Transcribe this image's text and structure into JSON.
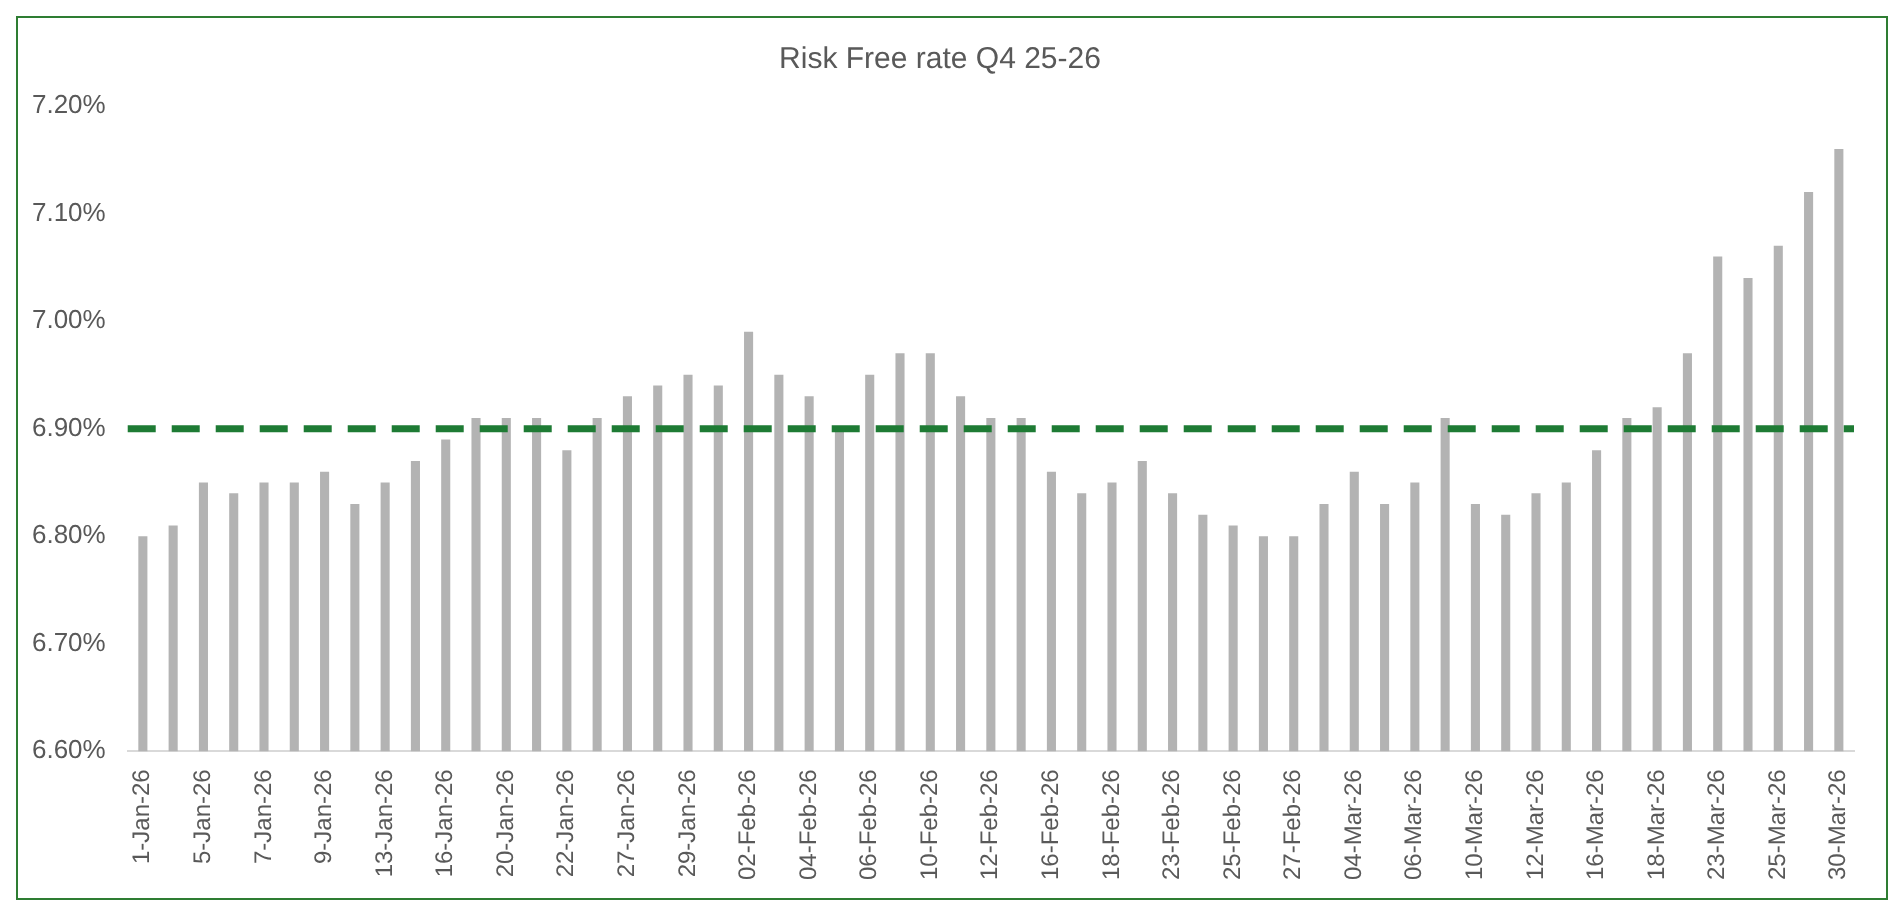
{
  "chart_data": {
    "type": "bar",
    "title": "Risk Free rate Q4 25-26",
    "categories": [
      "1-Jan-26",
      null,
      "5-Jan-26",
      null,
      "7-Jan-26",
      null,
      "9-Jan-26",
      null,
      "13-Jan-26",
      null,
      "16-Jan-26",
      null,
      "20-Jan-26",
      null,
      "22-Jan-26",
      null,
      "27-Jan-26",
      null,
      "29-Jan-26",
      null,
      "02-Feb-26",
      null,
      "04-Feb-26",
      null,
      "06-Feb-26",
      null,
      "10-Feb-26",
      null,
      "12-Feb-26",
      null,
      "16-Feb-26",
      null,
      "18-Feb-26",
      null,
      "23-Feb-26",
      null,
      "25-Feb-26",
      null,
      "27-Feb-26",
      null,
      "04-Mar-26",
      null,
      "06-Mar-26",
      null,
      "10-Mar-26",
      null,
      "12-Mar-26",
      null,
      "16-Mar-26",
      null,
      "18-Mar-26",
      null,
      "23-Mar-26",
      null,
      "25-Mar-26",
      null,
      "30-Mar-26"
    ],
    "series": [
      {
        "color": "#b3b3b3",
        "values": [
          6.8,
          6.81,
          6.85,
          6.84,
          6.85,
          6.85,
          6.86,
          6.83,
          6.85,
          6.87,
          6.89,
          6.91,
          6.91,
          6.91,
          6.88,
          6.91,
          6.93,
          6.94,
          6.95,
          6.94,
          6.99,
          6.95,
          6.93,
          6.9,
          6.95,
          6.97,
          6.97,
          6.93,
          6.91,
          6.91,
          6.86,
          6.84,
          6.85,
          6.87,
          6.84,
          6.82,
          6.81,
          6.8,
          6.8,
          6.83,
          6.86,
          6.83,
          6.85,
          6.91,
          6.83,
          6.82,
          6.84,
          6.85,
          6.88,
          6.91,
          6.92,
          6.97,
          7.06,
          7.04,
          7.07,
          7.12,
          7.16
        ]
      }
    ],
    "ylim": [
      6.6,
      7.2
    ],
    "yticks": [
      {
        "value": 6.6,
        "label": "6.60%"
      },
      {
        "value": 6.7,
        "label": "6.70%"
      },
      {
        "value": 6.8,
        "label": "6.80%"
      },
      {
        "value": 6.9,
        "label": "6.90%"
      },
      {
        "value": 7.0,
        "label": "7.00%"
      },
      {
        "value": 7.1,
        "label": "7.10%"
      },
      {
        "value": 7.2,
        "label": "7.20%"
      }
    ],
    "ref_lines": [
      {
        "axis": "y",
        "value": 6.9,
        "color": "#1e7b34",
        "line_style": "dashed"
      }
    ],
    "grid": false,
    "legend": false
  }
}
